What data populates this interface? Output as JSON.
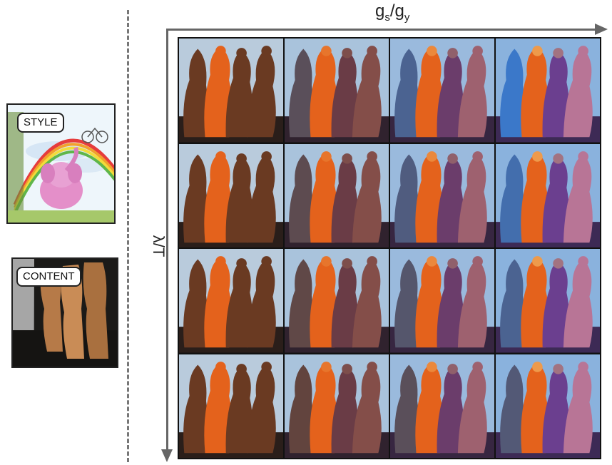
{
  "style_label": "STYLE",
  "content_label": "CONTENT",
  "x_axis": {
    "base": "g",
    "sub1": "s",
    "slash": "/",
    "sub2": "y"
  },
  "y_axis_label": "λ/T",
  "grid": {
    "rows": 4,
    "cols": 4
  },
  "palette": {
    "sky_warm": "#b9cbdc",
    "sky_cool": "#8ab2dd",
    "orange": "#e4621c",
    "brown": "#6a3a22",
    "blue": "#3b78c9",
    "purple": "#6b3f8f",
    "pink": "#d98ec8"
  }
}
